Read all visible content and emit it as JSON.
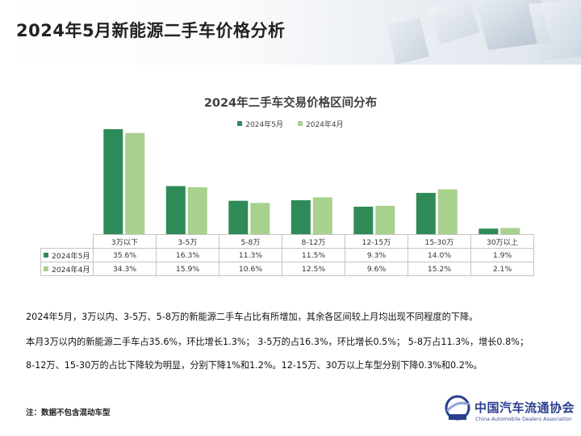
{
  "page": {
    "title": "2024年5月新能源二手车价格分析",
    "colors": {
      "may": "#2e8b57",
      "april": "#a9d18e"
    }
  },
  "chart_data": {
    "type": "bar",
    "title": "2024年二手车交易价格区间分布",
    "categories": [
      "3万以下",
      "3-5万",
      "5-8万",
      "8-12万",
      "12-15万",
      "15-30万",
      "30万以上"
    ],
    "series": [
      {
        "name": "2024年5月",
        "values": [
          35.6,
          16.3,
          11.3,
          11.5,
          9.3,
          14.0,
          1.9
        ]
      },
      {
        "name": "2024年4月",
        "values": [
          34.3,
          15.9,
          10.6,
          12.5,
          9.6,
          15.2,
          2.1
        ]
      }
    ],
    "value_labels": [
      [
        "35.6%",
        "16.3%",
        "11.3%",
        "11.5%",
        "9.3%",
        "14.0%",
        "1.9%"
      ],
      [
        "34.3%",
        "15.9%",
        "10.6%",
        "12.5%",
        "9.6%",
        "15.2%",
        "2.1%"
      ]
    ],
    "legend_position": "top-center",
    "grid": false,
    "data_table": true
  },
  "summary": {
    "line1": "2024年5月，3万以内、3-5万、5-8万的新能源二手车占比有所增加，其余各区间较上月均出现不同程度的下降。",
    "line2": "本月3万以内的新能源二手车占35.6%，环比增长1.3%； 3-5万的占16.3%，环比增长0.5%； 5-8万占11.3%，增长0.8%；",
    "line3": "8-12万、15-30万的占比下降较为明显，分别下降1%和1.2%。12-15万、30万以上车型分别下降0.3%和0.2%。"
  },
  "footer": {
    "note": "注：数据不包含混动车型",
    "logo_cn": "中国汽车流通协会",
    "logo_en": "China Automobile Dealers Association"
  }
}
